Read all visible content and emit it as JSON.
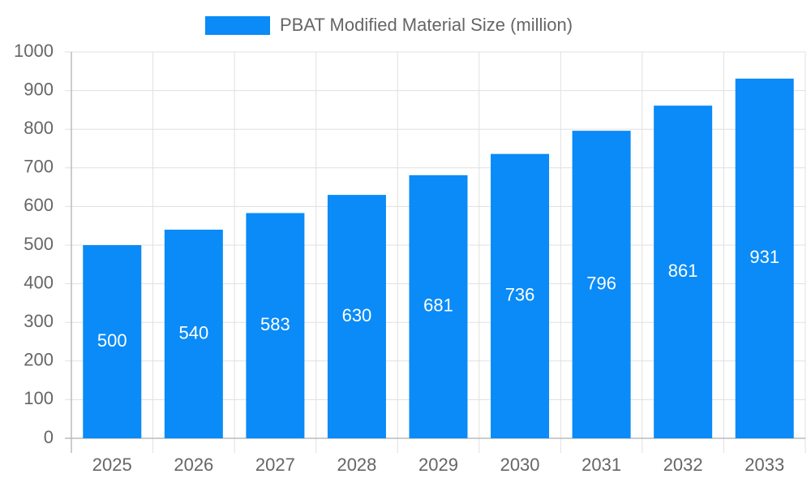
{
  "chart_data": {
    "type": "bar",
    "categories": [
      "2025",
      "2026",
      "2027",
      "2028",
      "2029",
      "2030",
      "2031",
      "2032",
      "2033"
    ],
    "series": [
      {
        "name": "PBAT Modified Material Size (million)",
        "color": "#0a8bf7",
        "values": [
          500,
          540,
          583,
          630,
          681,
          736,
          796,
          861,
          931
        ]
      }
    ],
    "ylim": [
      0,
      1000
    ],
    "yticks": [
      0,
      100,
      200,
      300,
      400,
      500,
      600,
      700,
      800,
      900,
      1000
    ],
    "grid": true,
    "legend": "top"
  }
}
